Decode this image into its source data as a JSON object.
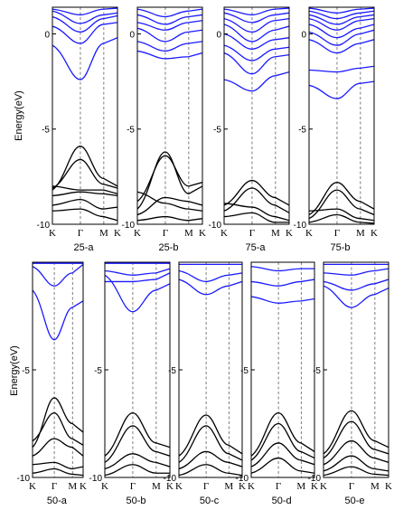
{
  "figure": {
    "ylabel": "Energy(eV)",
    "colors": {
      "conduction": "#1a1aff",
      "valence": "#000000",
      "axis": "#000000",
      "guide": "#444444"
    }
  },
  "chart_data": [
    {
      "type": "line",
      "panel": "25-a",
      "title": "25-a",
      "ylim": [
        -10,
        1.4
      ],
      "yticks": [
        0,
        -5,
        -10
      ],
      "xticks": [
        "K",
        "Γ",
        "M",
        "K"
      ],
      "conduction": [
        {
          "K": 1.3,
          "G": 1.0,
          "M": 1.3,
          "K2": 1.35
        },
        {
          "K": 1.2,
          "G": 0.55,
          "M": 1.0,
          "K2": 1.1
        },
        {
          "K": 0.9,
          "G": 0.1,
          "M": 0.8,
          "K2": 0.95
        },
        {
          "K": 0.4,
          "G": -0.5,
          "M": 0.5,
          "K2": 0.6
        },
        {
          "K": -0.6,
          "G": -2.4,
          "M": -0.5,
          "K2": -0.2
        }
      ],
      "valence": [
        {
          "K": -8.2,
          "G": -5.9,
          "M": -7.6,
          "K2": -8.0
        },
        {
          "K": -8.1,
          "G": -6.6,
          "M": -7.9,
          "K2": -8.1
        },
        {
          "K": -8.0,
          "G": -8.2,
          "M": -8.2,
          "K2": -8.4
        },
        {
          "K": -8.5,
          "G": -8.3,
          "M": -8.4,
          "K2": -8.5
        },
        {
          "K": -9.0,
          "G": -8.7,
          "M": -9.2,
          "K2": -9.1
        },
        {
          "K": -9.3,
          "G": -9.2,
          "M": -9.6,
          "K2": -9.8
        }
      ]
    },
    {
      "type": "line",
      "panel": "25-b",
      "title": "25-b",
      "ylim": [
        -10,
        1.4
      ],
      "yticks": [
        0,
        -5,
        -10
      ],
      "xticks": [
        "K",
        "Γ",
        "M",
        "K"
      ],
      "conduction": [
        {
          "K": 1.3,
          "G": 0.9,
          "M": 1.2,
          "K2": 1.3
        },
        {
          "K": 1.0,
          "G": 0.5,
          "M": 0.9,
          "K2": 1.0
        },
        {
          "K": 0.6,
          "G": 0.2,
          "M": 0.6,
          "K2": 0.7
        },
        {
          "K": 0.3,
          "G": -0.4,
          "M": 0.1,
          "K2": 0.2
        },
        {
          "K": -0.4,
          "G": -0.9,
          "M": -0.5,
          "K2": -0.4
        },
        {
          "K": -0.9,
          "G": -1.3,
          "M": -1.2,
          "K2": -1.0
        }
      ],
      "valence": [
        {
          "K": -9.2,
          "G": -6.2,
          "M": -8.4,
          "K2": -8.0
        },
        {
          "K": -8.8,
          "G": -6.4,
          "M": -8.0,
          "K2": -7.8
        },
        {
          "K": -9.5,
          "G": -8.6,
          "M": -8.8,
          "K2": -9.0
        },
        {
          "K": -8.3,
          "G": -8.9,
          "M": -9.2,
          "K2": -9.3
        },
        {
          "K": -9.8,
          "G": -9.6,
          "M": -9.8,
          "K2": -9.7
        }
      ]
    },
    {
      "type": "line",
      "panel": "75-a",
      "title": "75-a",
      "ylim": [
        -10,
        1.4
      ],
      "yticks": [
        0,
        -5,
        -10
      ],
      "xticks": [
        "K",
        "Γ",
        "M",
        "K"
      ],
      "conduction": [
        {
          "K": 1.3,
          "G": 1.0,
          "M": 1.3,
          "K2": 1.35
        },
        {
          "K": 1.1,
          "G": 0.6,
          "M": 1.0,
          "K2": 1.1
        },
        {
          "K": 0.8,
          "G": 0.1,
          "M": 0.7,
          "K2": 0.8
        },
        {
          "K": 0.5,
          "G": -0.4,
          "M": 0.2,
          "K2": 0.4
        },
        {
          "K": 0.0,
          "G": -0.8,
          "M": -0.3,
          "K2": -0.2
        },
        {
          "K": -0.6,
          "G": -1.4,
          "M": -0.8,
          "K2": -0.7
        },
        {
          "K": -1.0,
          "G": -2.1,
          "M": -1.2,
          "K2": -1.1
        },
        {
          "K": -2.4,
          "G": -3.0,
          "M": -2.2,
          "K2": -2.0
        }
      ],
      "valence": [
        {
          "K": -9.0,
          "G": -7.7,
          "M": -8.6,
          "K2": -9.0
        },
        {
          "K": -9.3,
          "G": -8.1,
          "M": -9.0,
          "K2": -9.4
        },
        {
          "K": -8.9,
          "G": -9.1,
          "M": -9.6,
          "K2": -9.8
        },
        {
          "K": -9.6,
          "G": -9.4,
          "M": -9.9,
          "K2": -9.9
        }
      ]
    },
    {
      "type": "line",
      "panel": "75-b",
      "title": "75-b",
      "ylim": [
        -10,
        1.4
      ],
      "yticks": [
        0,
        -5,
        -10
      ],
      "xticks": [
        "K",
        "Γ",
        "M",
        "K"
      ],
      "conduction": [
        {
          "K": 1.35,
          "G": 1.1,
          "M": 1.3,
          "K2": 1.35
        },
        {
          "K": 1.2,
          "G": 0.8,
          "M": 1.1,
          "K2": 1.2
        },
        {
          "K": 1.0,
          "G": 0.5,
          "M": 0.9,
          "K2": 1.0
        },
        {
          "K": 0.8,
          "G": 0.2,
          "M": 0.7,
          "K2": 0.8
        },
        {
          "K": 0.5,
          "G": -0.2,
          "M": 0.3,
          "K2": 0.5
        },
        {
          "K": 0.1,
          "G": -0.6,
          "M": 0.0,
          "K2": 0.2
        },
        {
          "K": -0.3,
          "G": -1.0,
          "M": -0.5,
          "K2": -0.3
        },
        {
          "K": -1.9,
          "G": -2.0,
          "M": -1.8,
          "K2": -1.7
        },
        {
          "K": -2.7,
          "G": -3.4,
          "M": -2.6,
          "K2": -2.5
        }
      ],
      "valence": [
        {
          "K": -9.5,
          "G": -7.8,
          "M": -8.8,
          "K2": -9.2
        },
        {
          "K": -9.7,
          "G": -8.2,
          "M": -9.2,
          "K2": -9.5
        },
        {
          "K": -9.3,
          "G": -9.2,
          "M": -9.7,
          "K2": -9.8
        },
        {
          "K": -9.9,
          "G": -9.5,
          "M": -9.9,
          "K2": -9.95
        }
      ]
    },
    {
      "type": "line",
      "panel": "50-a",
      "title": "50-a",
      "ylim": [
        -10,
        0
      ],
      "yticks": [
        -5,
        -10
      ],
      "xticks": [
        "K",
        "Γ",
        "M",
        "K"
      ],
      "conduction": [
        {
          "K": -0.05,
          "G": -0.05,
          "M": -0.05,
          "K2": -0.05
        },
        {
          "K": -0.2,
          "G": -1.1,
          "M": -0.5,
          "K2": -0.1
        },
        {
          "K": -1.3,
          "G": -3.6,
          "M": -2.1,
          "K2": -1.8
        }
      ],
      "valence": [
        {
          "K": -8.6,
          "G": -6.3,
          "M": -7.5,
          "K2": -7.9
        },
        {
          "K": -8.3,
          "G": -7.0,
          "M": -8.2,
          "K2": -8.5
        },
        {
          "K": -9.0,
          "G": -8.2,
          "M": -8.6,
          "K2": -9.0
        },
        {
          "K": -9.4,
          "G": -9.3,
          "M": -9.6,
          "K2": -9.5
        },
        {
          "K": -9.8,
          "G": -9.6,
          "M": -9.85,
          "K2": -9.9
        }
      ]
    },
    {
      "type": "line",
      "panel": "50-b",
      "title": "50-b",
      "ylim": [
        -10,
        0
      ],
      "yticks": [
        -5,
        -10
      ],
      "xticks": [
        "K",
        "Γ",
        "M",
        "K"
      ],
      "conduction": [
        {
          "K": -0.05,
          "G": -0.05,
          "M": -0.05,
          "K2": -0.05
        },
        {
          "K": -0.4,
          "G": -0.6,
          "M": -0.5,
          "K2": -0.3
        },
        {
          "K": -0.9,
          "G": -0.9,
          "M": -0.8,
          "K2": -0.5
        },
        {
          "K": -0.6,
          "G": -2.3,
          "M": -1.3,
          "K2": -1.0
        }
      ],
      "valence": [
        {
          "K": -9.0,
          "G": -7.0,
          "M": -8.4,
          "K2": -8.6
        },
        {
          "K": -9.3,
          "G": -7.6,
          "M": -8.8,
          "K2": -9.0
        },
        {
          "K": -9.6,
          "G": -8.9,
          "M": -9.3,
          "K2": -9.5
        },
        {
          "K": -9.9,
          "G": -9.4,
          "M": -9.8,
          "K2": -9.8
        }
      ]
    },
    {
      "type": "line",
      "panel": "50-c",
      "title": "50-c",
      "ylim": [
        -10,
        0
      ],
      "yticks": [
        -5,
        -10
      ],
      "xticks": [
        "K",
        "Γ",
        "M",
        "K"
      ],
      "conduction": [
        {
          "K": -0.1,
          "G": -0.1,
          "M": -0.1,
          "K2": -0.1
        },
        {
          "K": -0.4,
          "G": -0.9,
          "M": -0.6,
          "K2": -0.5
        },
        {
          "K": -0.8,
          "G": -1.5,
          "M": -1.1,
          "K2": -0.9
        }
      ],
      "valence": [
        {
          "K": -9.0,
          "G": -7.1,
          "M": -8.5,
          "K2": -8.9
        },
        {
          "K": -9.3,
          "G": -7.6,
          "M": -8.9,
          "K2": -9.2
        },
        {
          "K": -9.6,
          "G": -8.8,
          "M": -9.3,
          "K2": -9.5
        },
        {
          "K": -9.9,
          "G": -9.4,
          "M": -9.8,
          "K2": -9.9
        }
      ]
    },
    {
      "type": "line",
      "panel": "50-d",
      "title": "50-d",
      "ylim": [
        -10,
        0
      ],
      "yticks": [
        -5,
        -10
      ],
      "xticks": [
        "K",
        "Γ",
        "M",
        "K"
      ],
      "conduction": [
        {
          "K": -0.2,
          "G": -0.4,
          "M": -0.3,
          "K2": -0.3
        },
        {
          "K": -0.9,
          "G": -1.1,
          "M": -0.9,
          "K2": -0.8
        },
        {
          "K": -1.6,
          "G": -1.9,
          "M": -1.8,
          "K2": -1.7
        }
      ],
      "valence": [
        {
          "K": -9.0,
          "G": -7.0,
          "M": -8.4,
          "K2": -8.8
        },
        {
          "K": -9.2,
          "G": -7.5,
          "M": -8.8,
          "K2": -9.1
        },
        {
          "K": -9.5,
          "G": -8.4,
          "M": -9.2,
          "K2": -9.4
        },
        {
          "K": -9.8,
          "G": -9.1,
          "M": -9.7,
          "K2": -9.8
        }
      ]
    },
    {
      "type": "line",
      "panel": "50-e",
      "title": "50-e",
      "ylim": [
        -10,
        0
      ],
      "yticks": [
        -5,
        -10
      ],
      "xticks": [
        "K",
        "Γ",
        "M",
        "K"
      ],
      "conduction": [
        {
          "K": -0.1,
          "G": -0.1,
          "M": -0.1,
          "K2": -0.1
        },
        {
          "K": -0.5,
          "G": -0.6,
          "M": -0.4,
          "K2": -0.3
        },
        {
          "K": -0.9,
          "G": -1.3,
          "M": -1.0,
          "K2": -0.8
        },
        {
          "K": -1.1,
          "G": -2.1,
          "M": -1.5,
          "K2": -1.2
        }
      ],
      "valence": [
        {
          "K": -8.9,
          "G": -6.9,
          "M": -8.3,
          "K2": -8.6
        },
        {
          "K": -9.1,
          "G": -7.4,
          "M": -8.7,
          "K2": -8.9
        },
        {
          "K": -9.4,
          "G": -8.3,
          "M": -9.1,
          "K2": -9.3
        },
        {
          "K": -9.7,
          "G": -9.0,
          "M": -9.6,
          "K2": -9.7
        },
        {
          "K": -9.9,
          "G": -9.5,
          "M": -9.85,
          "K2": -9.9
        }
      ]
    }
  ]
}
